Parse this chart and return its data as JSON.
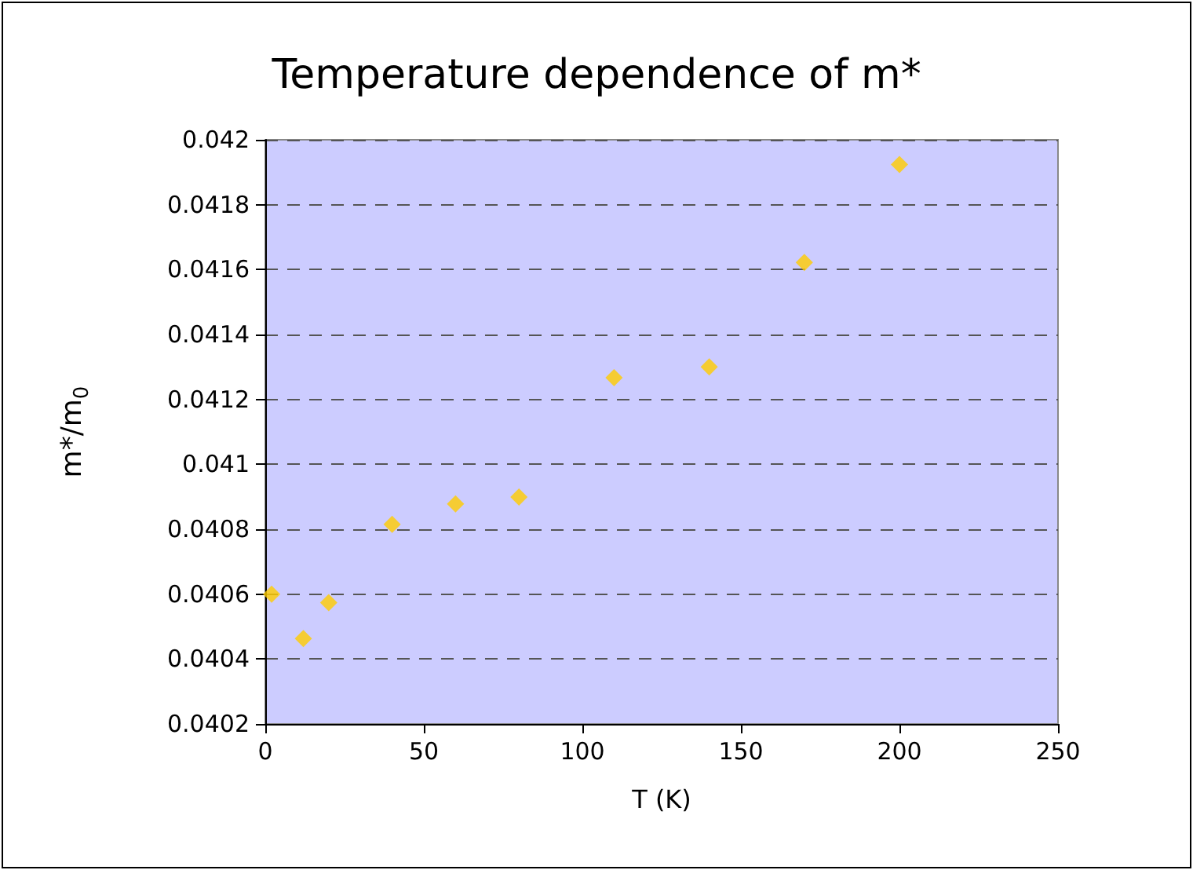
{
  "chart_data": {
    "type": "scatter",
    "title": "Temperature dependence of m*",
    "xlabel": "T (K)",
    "ylabel": "m*/m$_{0}$",
    "x": [
      2,
      12,
      20,
      40,
      60,
      80,
      110,
      140,
      170,
      200
    ],
    "series": [
      {
        "color": "#ffcc00",
        "values": [
          0.0406,
          0.040463,
          0.040574,
          0.040815,
          0.040878,
          0.040899,
          0.041267,
          0.0413,
          0.041622,
          0.041924
        ]
      }
    ],
    "xlim": [
      0,
      250
    ],
    "xticks": [
      0,
      50,
      100,
      150,
      200,
      250
    ],
    "ylim": [
      0.0402,
      0.042
    ],
    "yticks": [
      0.0402,
      0.0404,
      0.0406,
      0.0408,
      0.041,
      0.0412,
      0.0414,
      0.0416,
      0.0418,
      0.042
    ],
    "grid": "y",
    "marker": "diamond"
  }
}
